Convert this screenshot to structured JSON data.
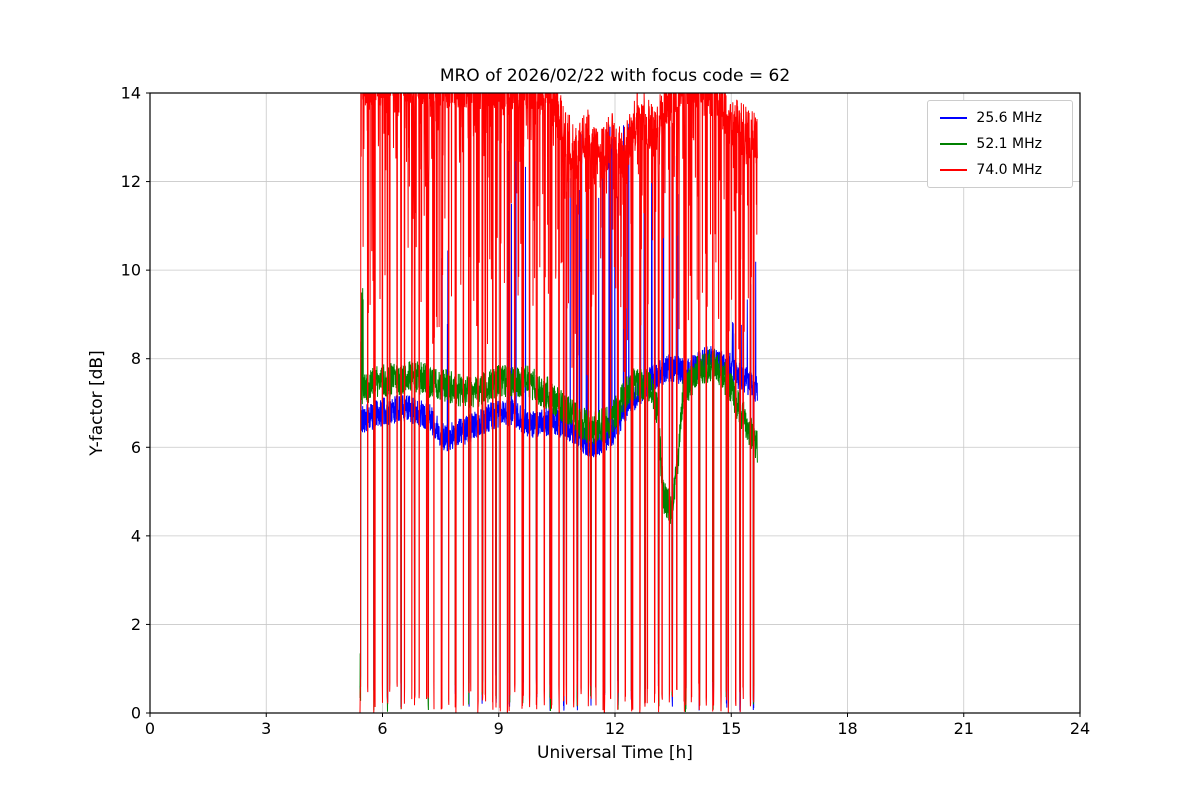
{
  "chart_data": {
    "type": "line",
    "title": "MRO of 2026/02/22 with focus code = 62",
    "xlabel": "Universal Time [h]",
    "ylabel": "Y-factor [dB]",
    "xlim": [
      0,
      24
    ],
    "ylim": [
      0,
      14
    ],
    "xticks": [
      0,
      3,
      6,
      9,
      12,
      15,
      18,
      21,
      24
    ],
    "yticks": [
      0,
      2,
      4,
      6,
      8,
      10,
      12,
      14
    ],
    "grid": true,
    "grid_color": "#c8c8c8",
    "legend_position": "upper right",
    "time_range": [
      5.42,
      15.68
    ],
    "sample_step": 0.005,
    "calibration_dip": {
      "period": 0.35,
      "width": 0.016
    },
    "series": [
      {
        "name": "25.6 MHz",
        "color": "#0000ff",
        "seed": 11,
        "noise_amp": 0.32,
        "dip_top": 1.0,
        "baseline": [
          [
            5.42,
            6.6
          ],
          [
            6.0,
            6.8
          ],
          [
            6.6,
            6.9
          ],
          [
            7.2,
            6.7
          ],
          [
            7.6,
            6.2
          ],
          [
            8.2,
            6.4
          ],
          [
            8.8,
            6.7
          ],
          [
            9.3,
            6.8
          ],
          [
            9.8,
            6.5
          ],
          [
            10.4,
            6.6
          ],
          [
            10.9,
            6.4
          ],
          [
            11.4,
            6.0
          ],
          [
            11.9,
            6.3
          ],
          [
            12.4,
            7.0
          ],
          [
            12.9,
            7.5
          ],
          [
            13.4,
            7.8
          ],
          [
            13.9,
            7.7
          ],
          [
            14.4,
            8.0
          ],
          [
            14.9,
            7.8
          ],
          [
            15.4,
            7.5
          ],
          [
            15.68,
            7.3
          ]
        ],
        "spike_regions": [
          [
            5.42,
            5.5,
            9.4,
            0.2
          ],
          [
            7.5,
            8.1,
            10.6,
            0.02
          ],
          [
            9.0,
            9.7,
            13.4,
            0.05
          ],
          [
            10.5,
            13.7,
            13.6,
            0.06
          ],
          [
            13.8,
            15.3,
            9.0,
            0.03
          ],
          [
            15.3,
            15.68,
            10.9,
            0.05
          ]
        ]
      },
      {
        "name": "52.1 MHz",
        "color": "#008000",
        "seed": 22,
        "noise_amp": 0.38,
        "dip_top": 1.5,
        "baseline": [
          [
            5.42,
            7.3
          ],
          [
            6.0,
            7.5
          ],
          [
            6.8,
            7.6
          ],
          [
            7.6,
            7.4
          ],
          [
            8.3,
            7.2
          ],
          [
            9.0,
            7.5
          ],
          [
            9.7,
            7.5
          ],
          [
            10.3,
            7.2
          ],
          [
            10.9,
            6.7
          ],
          [
            11.4,
            6.4
          ],
          [
            11.9,
            6.6
          ],
          [
            12.4,
            7.4
          ],
          [
            12.9,
            7.4
          ],
          [
            13.1,
            6.8
          ],
          [
            13.25,
            4.9
          ],
          [
            13.45,
            4.6
          ],
          [
            13.6,
            5.4
          ],
          [
            13.75,
            7.2
          ],
          [
            14.1,
            7.7
          ],
          [
            14.6,
            7.9
          ],
          [
            15.0,
            7.3
          ],
          [
            15.4,
            6.5
          ],
          [
            15.68,
            6.0
          ]
        ],
        "spike_regions": [
          [
            5.42,
            5.5,
            9.6,
            0.2
          ]
        ]
      },
      {
        "name": "74.0 MHz",
        "color": "#ff0000",
        "seed": 33,
        "noise_amp": 0.6,
        "dip_top": 0.7,
        "baseline": [
          [
            5.42,
            14.3
          ],
          [
            10.3,
            14.2
          ],
          [
            10.7,
            13.2
          ],
          [
            11.0,
            12.6
          ],
          [
            11.3,
            13.1
          ],
          [
            11.6,
            12.5
          ],
          [
            11.9,
            13.0
          ],
          [
            12.2,
            12.6
          ],
          [
            12.6,
            13.6
          ],
          [
            13.0,
            13.1
          ],
          [
            13.4,
            13.9
          ],
          [
            13.8,
            14.2
          ],
          [
            14.3,
            14.3
          ],
          [
            14.7,
            13.7
          ],
          [
            15.1,
            13.3
          ],
          [
            15.4,
            13.1
          ],
          [
            15.68,
            12.9
          ]
        ],
        "spike_regions": [],
        "down_spike": {
          "prob": 0.3,
          "max_depth": 5.5,
          "shape": 3
        },
        "extra_dip": {
          "period": 0.19,
          "width": 0.012
        }
      }
    ]
  }
}
